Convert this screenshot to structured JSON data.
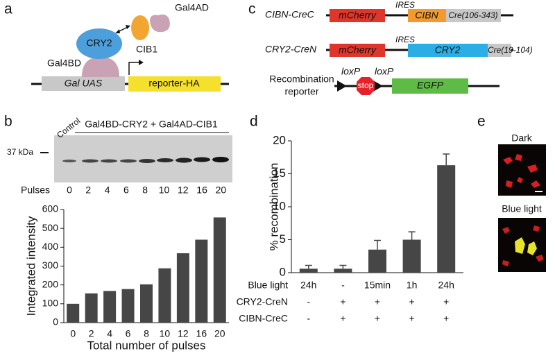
{
  "panel_labels": [
    "a",
    "b",
    "c",
    "d",
    "e"
  ],
  "panel_a": {
    "gal4ad": "Gal4AD",
    "cib1": "CIB1",
    "cry2": "CRY2",
    "gal4bd": "Gal4BD",
    "gal_uas": "Gal UAS",
    "reporter": "reporter-HA"
  },
  "panel_b_gel": {
    "control": "Control",
    "header": "Gal4BD-CRY2 + Gal4AD-CIB1",
    "marker": "37 kDa",
    "pulses_label": "Pulses",
    "lanes": [
      "0",
      "2",
      "4",
      "6",
      "8",
      "10",
      "12",
      "16",
      "20"
    ]
  },
  "panel_c": {
    "constructs": [
      {
        "name": "CIBN-CreC",
        "ires": "IRES",
        "parts": [
          "mCherry",
          "CIBN",
          "Cre(106-343)"
        ]
      },
      {
        "name": "CRY2-CreN",
        "ires": "IRES",
        "parts": [
          "mCherry",
          "CRY2",
          "Cre(19-104)"
        ]
      }
    ],
    "reporter": {
      "name": [
        "Recombination",
        "reporter"
      ],
      "loxp": [
        "loxP",
        "loxP"
      ],
      "stop": "stop",
      "egfp": "EGFP"
    }
  },
  "panel_e": {
    "dark": "Dark",
    "blue_light": "Blue light"
  },
  "chart_data": [
    {
      "type": "bar",
      "categories": [
        "0",
        "2",
        "4",
        "6",
        "8",
        "10",
        "12",
        "16",
        "20"
      ],
      "values": [
        100,
        155,
        168,
        178,
        203,
        288,
        368,
        440,
        558
      ],
      "color": "#464646",
      "ylim": [
        0,
        600
      ],
      "yticks": [
        0,
        100,
        200,
        300,
        400,
        500,
        600
      ],
      "xlabel": "Total number of pulses",
      "ylabel": "Integrated intensity"
    },
    {
      "type": "bar",
      "values": [
        0.6,
        0.6,
        3.5,
        5.0,
        16.3
      ],
      "errors": [
        0.5,
        0.5,
        1.4,
        1.2,
        1.7
      ],
      "color": "#464646",
      "ylim": [
        0,
        20
      ],
      "yticks": [
        0,
        5,
        10,
        15,
        20
      ],
      "ylabel": "% recombination",
      "conditions": [
        {
          "label": "Blue light",
          "values": [
            "24h",
            "-",
            "15min",
            "1h",
            "24h"
          ]
        },
        {
          "label": "CRY2-CreN",
          "values": [
            "-",
            "+",
            "+",
            "+",
            "+"
          ]
        },
        {
          "label": "CIBN-CreC",
          "values": [
            "-",
            "+",
            "+",
            "+",
            "+"
          ]
        }
      ]
    }
  ]
}
